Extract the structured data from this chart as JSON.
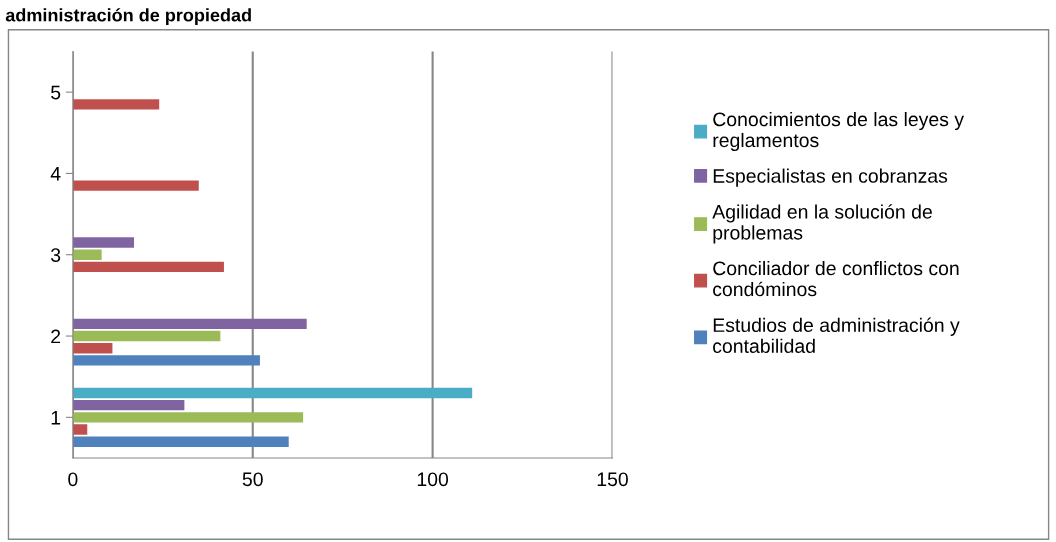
{
  "chart_data": {
    "type": "bar",
    "orientation": "horizontal",
    "title": "administración de propiedad",
    "categories": [
      "5",
      "4",
      "3",
      "2",
      "1"
    ],
    "series": [
      {
        "name": "Estudios de administración y\ncontabilidad",
        "color": "#4f81bd",
        "values": [
          null,
          null,
          null,
          52,
          60
        ]
      },
      {
        "name": "Conciliador de conflictos con\ncondóminos",
        "color": "#c0504d",
        "values": [
          24,
          35,
          42,
          11,
          4
        ]
      },
      {
        "name": "Agilidad en la solución de\nproblemas",
        "color": "#9bbb59",
        "values": [
          null,
          null,
          8,
          41,
          64
        ]
      },
      {
        "name": "Especialistas en cobranzas",
        "color": "#8064a2",
        "values": [
          null,
          null,
          17,
          65,
          31
        ]
      },
      {
        "name": "Conocimientos de las leyes y\nreglamentos",
        "color": "#4bacc6",
        "values": [
          null,
          null,
          null,
          null,
          111
        ]
      }
    ],
    "xlim": [
      0,
      150
    ],
    "xticks": [
      0,
      50,
      100,
      150
    ],
    "grid": "x",
    "legend": "right"
  }
}
